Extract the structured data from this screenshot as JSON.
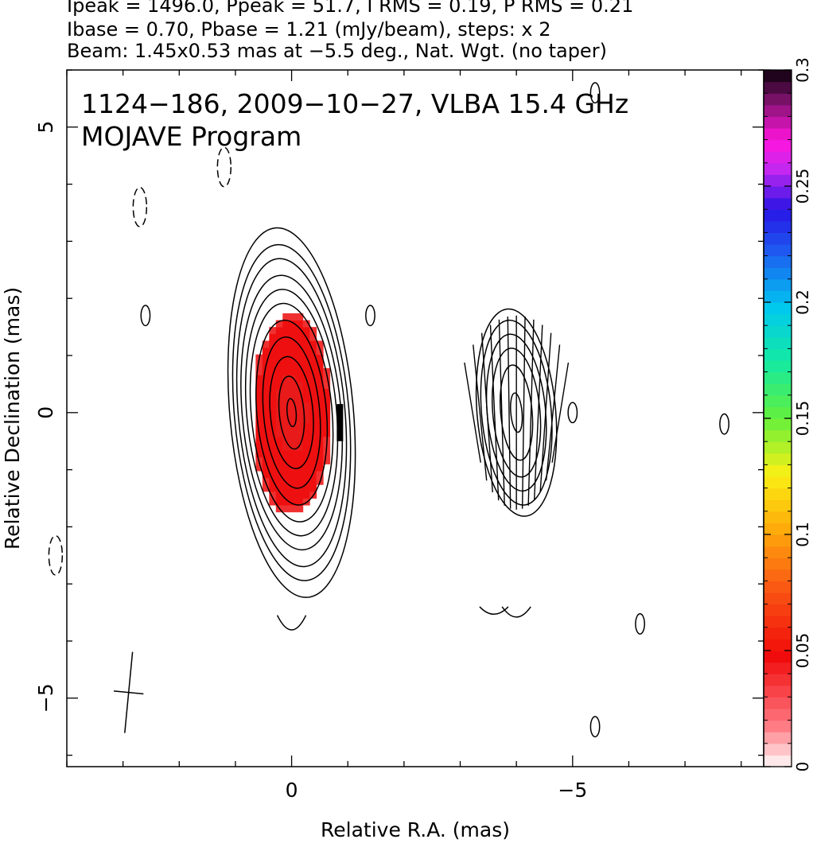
{
  "header": {
    "line1": "Ipeak = 1496.0, Ppeak = 51.7, I RMS = 0.19, P RMS = 0.21",
    "line2": "Ibase = 0.70, Pbase = 1.21 (mJy/beam), steps: x 2",
    "line3": "Beam: 1.45x0.53 mas at −5.5 deg., Nat. Wgt. (no taper)"
  },
  "chart_data": {
    "type": "heatmap",
    "title": "1124−186, 2009−10−27, VLBA 15.4 GHz",
    "subtitle": "MOJAVE Program",
    "xlabel": "Relative R.A. (mas)",
    "ylabel": "Relative Declination (mas)",
    "xlim": [
      4.0,
      -8.4
    ],
    "ylim": [
      -6.2,
      6.0
    ],
    "x_ticks": [
      0,
      -5
    ],
    "x_tick_labels": [
      "0",
      "−5"
    ],
    "y_ticks": [
      5,
      0,
      -5
    ],
    "y_tick_labels": [
      "5",
      "0",
      "−5"
    ],
    "colorbar": {
      "range": [
        0,
        0.3
      ],
      "ticks": [
        0,
        0.05,
        0.1,
        0.15,
        0.2,
        0.25,
        0.3
      ],
      "tick_labels": [
        "0",
        "0.05",
        "0.1",
        "0.15",
        "0.2",
        "0.25",
        "0.3"
      ]
    },
    "contour_components": [
      {
        "name": "core",
        "ra": 0.0,
        "dec": 0.0,
        "levels_semi_axes": [
          [
            0.08,
            0.25
          ],
          [
            0.22,
            0.65
          ],
          [
            0.38,
            1.0
          ],
          [
            0.5,
            1.35
          ],
          [
            0.62,
            1.65
          ],
          [
            0.72,
            1.95
          ],
          [
            0.8,
            2.2
          ],
          [
            0.88,
            2.45
          ],
          [
            0.95,
            2.75
          ],
          [
            1.02,
            3.0
          ],
          [
            1.1,
            3.3
          ]
        ],
        "tilt_deg": -5
      },
      {
        "name": "jet",
        "ra": -4.0,
        "dec": 0.0,
        "levels_semi_axes": [
          [
            0.1,
            0.35
          ],
          [
            0.28,
            0.85
          ],
          [
            0.42,
            1.15
          ],
          [
            0.52,
            1.4
          ],
          [
            0.62,
            1.65
          ],
          [
            0.7,
            1.85
          ]
        ],
        "tilt_deg": -5
      }
    ],
    "polarized_intensity_region": {
      "ra_range": [
        0.7,
        -0.7
      ],
      "dec_range": [
        -1.8,
        1.75
      ],
      "value": 0.05
    },
    "evpa_vectors_at": "jet component, near-vertical",
    "beam": {
      "major_mas": 1.45,
      "minor_mas": 0.53,
      "pa_deg": -5.5,
      "center_ra": 2.9,
      "center_dec": -4.9
    },
    "negative_contours": [
      [
        1.2,
        4.3
      ],
      [
        2.7,
        3.6
      ],
      [
        4.2,
        -2.5
      ]
    ],
    "small_islands": [
      [
        2.6,
        1.7
      ],
      [
        -1.4,
        1.7
      ],
      [
        -5.0,
        0.0
      ],
      [
        -7.7,
        -0.2
      ],
      [
        -6.2,
        -3.7
      ],
      [
        -5.4,
        5.6
      ],
      [
        -5.4,
        -5.5
      ]
    ]
  }
}
